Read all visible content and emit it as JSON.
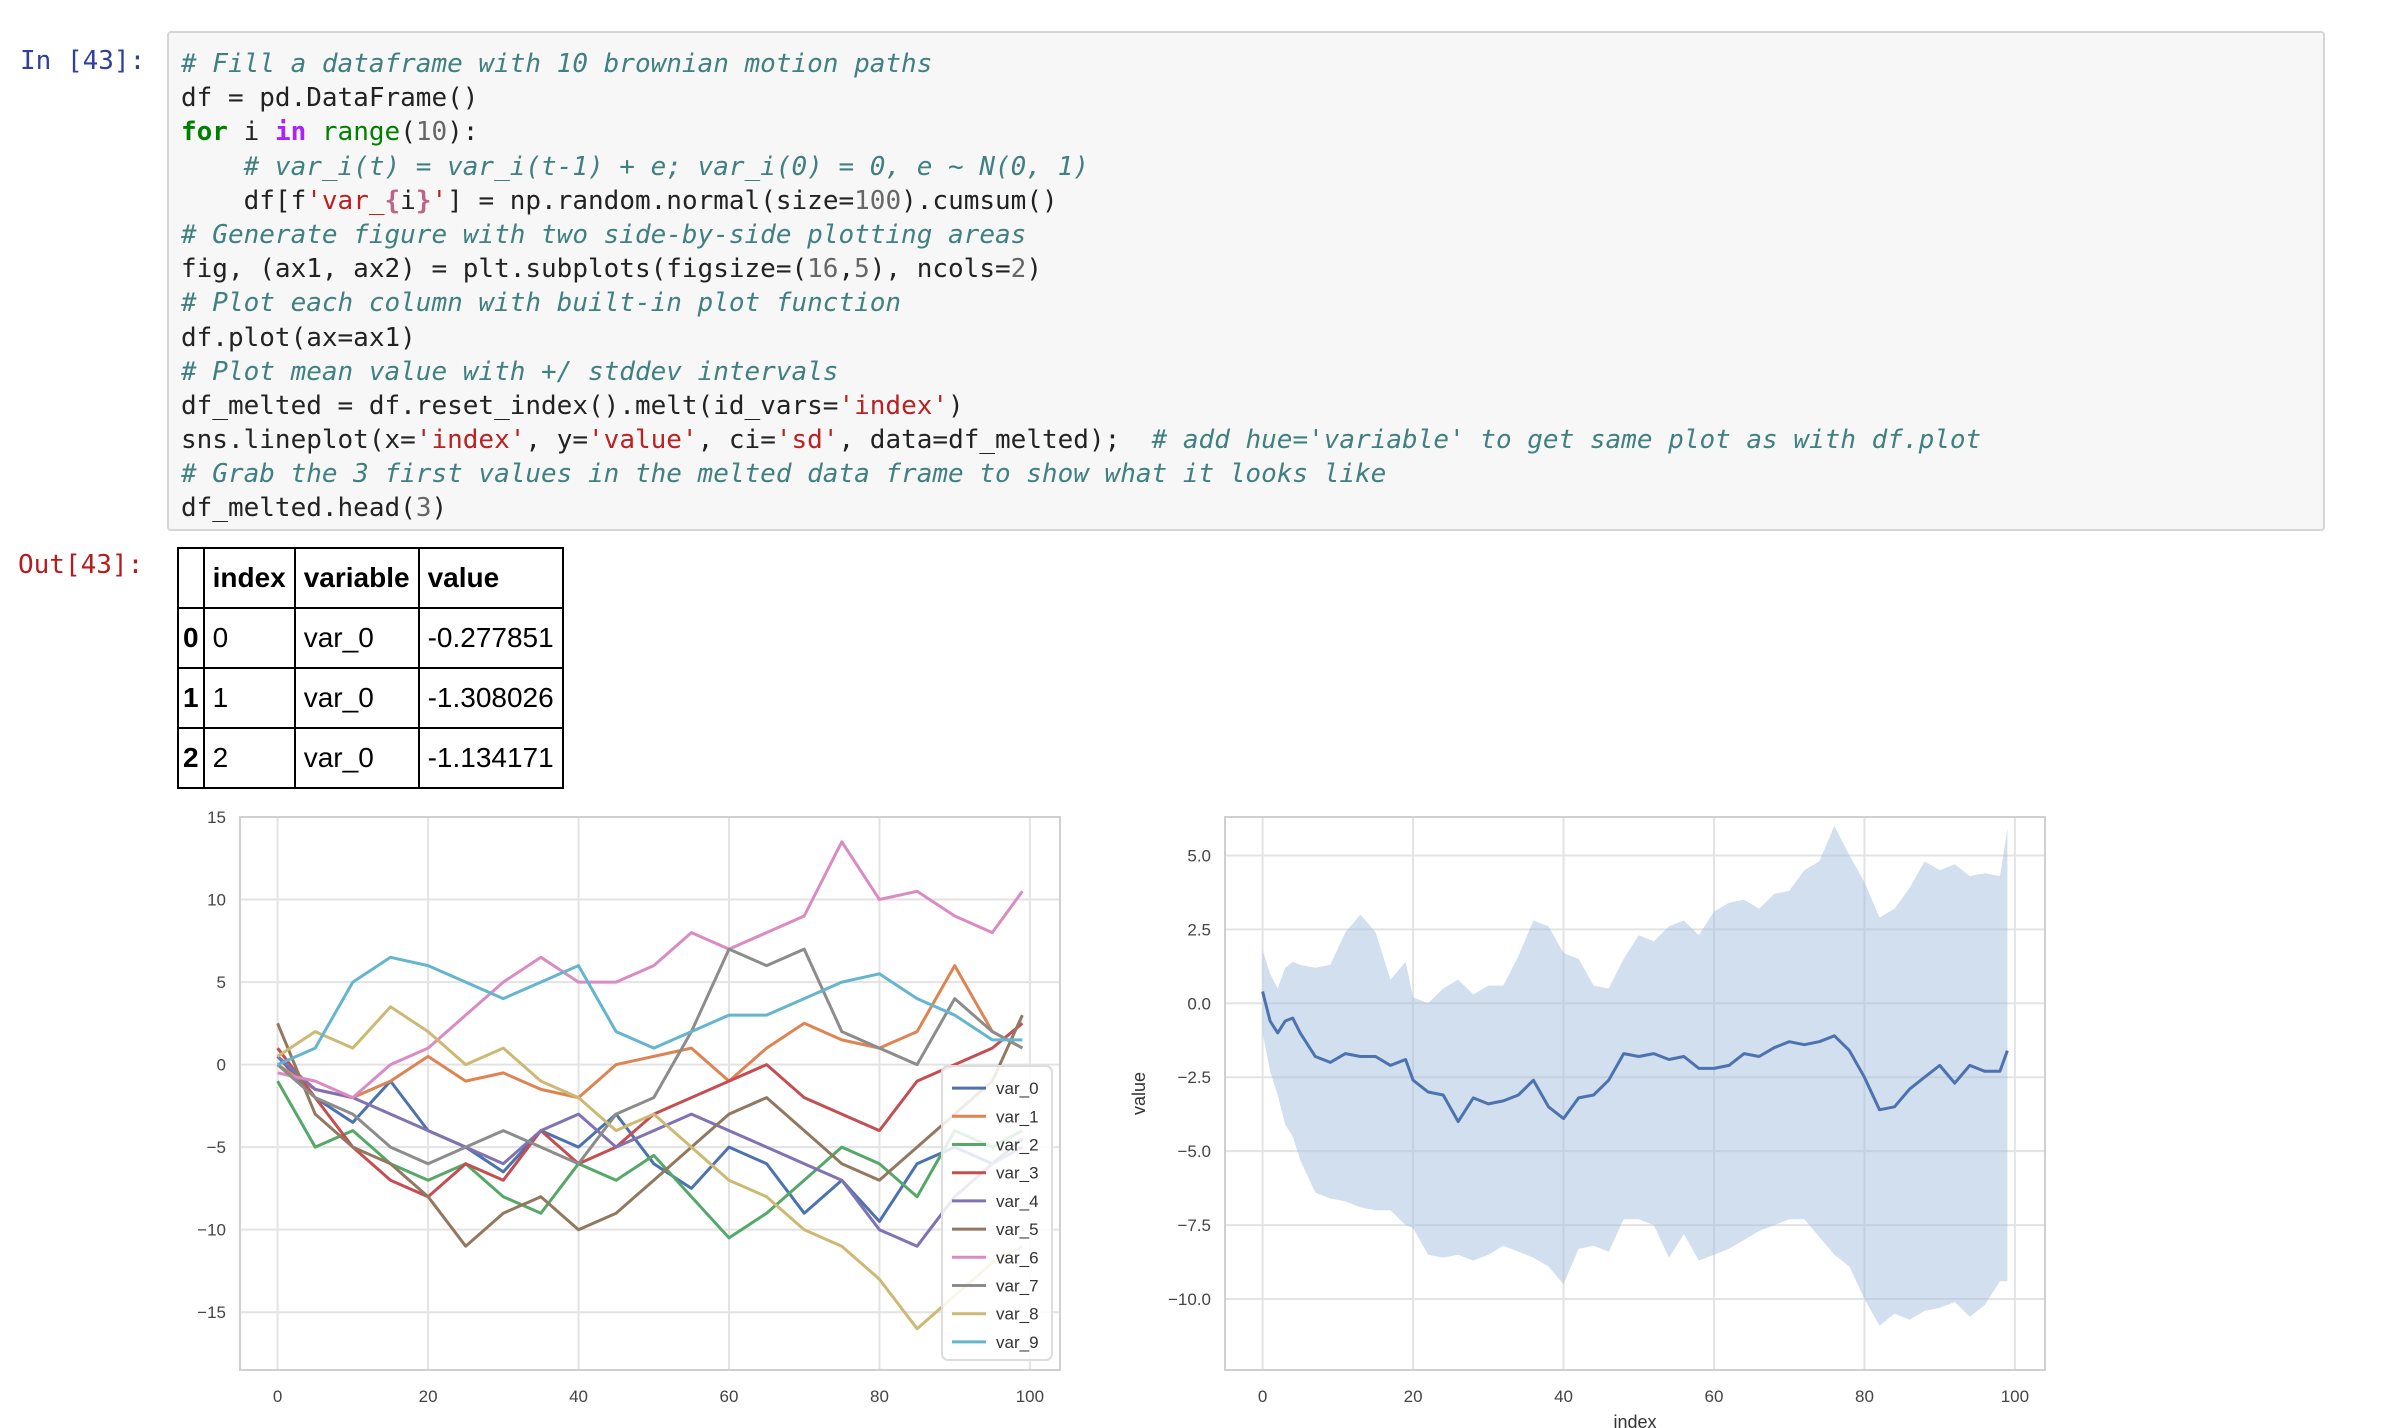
{
  "prompts": {
    "in": "In [43]:",
    "out": "Out[43]:"
  },
  "code": [
    [
      {
        "t": "c",
        "v": "# Fill a dataframe with 10 brownian motion paths"
      }
    ],
    [
      {
        "t": "",
        "v": "df = pd.DataFrame()"
      }
    ],
    [
      {
        "t": "k",
        "v": "for"
      },
      {
        "t": "",
        "v": " i "
      },
      {
        "t": "ow",
        "v": "in"
      },
      {
        "t": "",
        "v": " "
      },
      {
        "t": "nb",
        "v": "range"
      },
      {
        "t": "",
        "v": "("
      },
      {
        "t": "mi",
        "v": "10"
      },
      {
        "t": "",
        "v": "):"
      }
    ],
    [
      {
        "t": "",
        "v": "    "
      },
      {
        "t": "c",
        "v": "# var_i(t) = var_i(t-1) + e; var_i(0) = 0, e ~ N(0, 1)"
      }
    ],
    [
      {
        "t": "",
        "v": "    df[f"
      },
      {
        "t": "s",
        "v": "'var_"
      },
      {
        "t": "si",
        "v": "{"
      },
      {
        "t": "",
        "v": "i"
      },
      {
        "t": "si",
        "v": "}"
      },
      {
        "t": "s",
        "v": "'"
      },
      {
        "t": "",
        "v": "] = np.random.normal(size="
      },
      {
        "t": "mi",
        "v": "100"
      },
      {
        "t": "",
        "v": ").cumsum()"
      }
    ],
    [
      {
        "t": "c",
        "v": "# Generate figure with two side-by-side plotting areas"
      }
    ],
    [
      {
        "t": "",
        "v": "fig, (ax1, ax2) = plt.subplots(figsize=("
      },
      {
        "t": "mi",
        "v": "16"
      },
      {
        "t": "",
        "v": ","
      },
      {
        "t": "mi",
        "v": "5"
      },
      {
        "t": "",
        "v": "), ncols="
      },
      {
        "t": "mi",
        "v": "2"
      },
      {
        "t": "",
        "v": ")"
      }
    ],
    [
      {
        "t": "c",
        "v": "# Plot each column with built-in plot function"
      }
    ],
    [
      {
        "t": "",
        "v": "df.plot(ax=ax1)"
      }
    ],
    [
      {
        "t": "c",
        "v": "# Plot mean value with +/ stddev intervals"
      }
    ],
    [
      {
        "t": "",
        "v": "df_melted = df.reset_index().melt(id_vars="
      },
      {
        "t": "s",
        "v": "'index'"
      },
      {
        "t": "",
        "v": ")"
      }
    ],
    [
      {
        "t": "",
        "v": "sns.lineplot(x="
      },
      {
        "t": "s",
        "v": "'index'"
      },
      {
        "t": "",
        "v": ", y="
      },
      {
        "t": "s",
        "v": "'value'"
      },
      {
        "t": "",
        "v": ", ci="
      },
      {
        "t": "s",
        "v": "'sd'"
      },
      {
        "t": "",
        "v": ", data=df_melted);  "
      },
      {
        "t": "c",
        "v": "# add hue='variable' to get same plot as with df.plot"
      }
    ],
    [
      {
        "t": "c",
        "v": "# Grab the 3 first values in the melted data frame to show what it looks like"
      }
    ],
    [
      {
        "t": "",
        "v": "df_melted.head("
      },
      {
        "t": "mi",
        "v": "3"
      },
      {
        "t": "",
        "v": ")"
      }
    ]
  ],
  "output_table": {
    "columns": [
      "",
      "index",
      "variable",
      "value"
    ],
    "rows": [
      {
        "label": "0",
        "cells": [
          "0",
          "var_0",
          "-0.277851"
        ]
      },
      {
        "label": "1",
        "cells": [
          "1",
          "var_0",
          "-1.308026"
        ]
      },
      {
        "label": "2",
        "cells": [
          "2",
          "var_0",
          "-1.134171"
        ]
      }
    ]
  },
  "chart_data": [
    {
      "type": "line",
      "title": "",
      "xlabel": "",
      "ylabel": "",
      "xlim": [
        -5,
        104
      ],
      "ylim": [
        -18.5,
        15
      ],
      "x_ticks": [
        "0",
        "20",
        "40",
        "60",
        "80",
        "100"
      ],
      "y_ticks": [
        "15",
        "10",
        "5",
        "0",
        "−5",
        "−10",
        "−15"
      ],
      "grid": true,
      "legend_position": "bottom-right",
      "series": [
        {
          "name": "var_0",
          "color": "#4c72b0",
          "x": [
            0,
            5,
            10,
            15,
            20,
            25,
            30,
            35,
            40,
            45,
            50,
            55,
            60,
            65,
            70,
            75,
            80,
            85,
            90,
            95,
            99
          ],
          "values": [
            0.5,
            -2,
            -3.5,
            -1,
            -4,
            -5,
            -6.5,
            -4,
            -5,
            -3,
            -6,
            -7.5,
            -5,
            -6,
            -9,
            -7,
            -9.5,
            -6,
            -5,
            -6,
            -4.5
          ]
        },
        {
          "name": "var_1",
          "color": "#dd8452",
          "x": [
            0,
            5,
            10,
            15,
            20,
            25,
            30,
            35,
            40,
            45,
            50,
            55,
            60,
            65,
            70,
            75,
            80,
            85,
            90,
            95,
            99
          ],
          "values": [
            0,
            -1.5,
            -2,
            -1,
            0.5,
            -1,
            -0.5,
            -1.5,
            -2,
            0,
            0.5,
            1,
            -1,
            1,
            2.5,
            1.5,
            1,
            2,
            6,
            2,
            1
          ]
        },
        {
          "name": "var_2",
          "color": "#55a868",
          "x": [
            0,
            5,
            10,
            15,
            20,
            25,
            30,
            35,
            40,
            45,
            50,
            55,
            60,
            65,
            70,
            75,
            80,
            85,
            90,
            95,
            99
          ],
          "values": [
            -1,
            -5,
            -4,
            -6,
            -7,
            -6,
            -8,
            -9,
            -6,
            -7,
            -5.5,
            -8,
            -10.5,
            -9,
            -7,
            -5,
            -6,
            -8,
            -4,
            -5,
            -4
          ]
        },
        {
          "name": "var_3",
          "color": "#c44e52",
          "x": [
            0,
            5,
            10,
            15,
            20,
            25,
            30,
            35,
            40,
            45,
            50,
            55,
            60,
            65,
            70,
            75,
            80,
            85,
            90,
            95,
            99
          ],
          "values": [
            1,
            -2,
            -5,
            -7,
            -8,
            -6,
            -7,
            -4,
            -6,
            -5,
            -3,
            -2,
            -1,
            0,
            -2,
            -3,
            -4,
            -1,
            0,
            1,
            2.5
          ]
        },
        {
          "name": "var_4",
          "color": "#8172b2",
          "x": [
            0,
            5,
            10,
            15,
            20,
            25,
            30,
            35,
            40,
            45,
            50,
            55,
            60,
            65,
            70,
            75,
            80,
            85,
            90,
            95,
            99
          ],
          "values": [
            0.5,
            -1.5,
            -2,
            -3,
            -4,
            -5,
            -6,
            -4,
            -3,
            -5,
            -4,
            -3,
            -4,
            -5,
            -6,
            -7,
            -10,
            -11,
            -8,
            -6,
            -5
          ]
        },
        {
          "name": "var_5",
          "color": "#937860",
          "x": [
            0,
            5,
            10,
            15,
            20,
            25,
            30,
            35,
            40,
            45,
            50,
            55,
            60,
            65,
            70,
            75,
            80,
            85,
            90,
            95,
            99
          ],
          "values": [
            2.5,
            -3,
            -5,
            -6,
            -8,
            -11,
            -9,
            -8,
            -10,
            -9,
            -7,
            -5,
            -3,
            -2,
            -4,
            -6,
            -7,
            -5,
            -3,
            -1,
            3
          ]
        },
        {
          "name": "var_6",
          "color": "#da8bc3",
          "x": [
            0,
            5,
            10,
            15,
            20,
            25,
            30,
            35,
            40,
            45,
            50,
            55,
            60,
            65,
            70,
            75,
            80,
            85,
            90,
            95,
            99
          ],
          "values": [
            -0.5,
            -1,
            -2,
            0,
            1,
            3,
            5,
            6.5,
            5,
            5,
            6,
            8,
            7,
            8,
            9,
            13.5,
            10,
            10.5,
            9,
            8,
            10.5
          ]
        },
        {
          "name": "var_7",
          "color": "#8c8c8c",
          "x": [
            0,
            5,
            10,
            15,
            20,
            25,
            30,
            35,
            40,
            45,
            50,
            55,
            60,
            65,
            70,
            75,
            80,
            85,
            90,
            95,
            99
          ],
          "values": [
            0,
            -2,
            -3,
            -5,
            -6,
            -5,
            -4,
            -5,
            -6,
            -3,
            -2,
            2,
            7,
            6,
            7,
            2,
            1,
            0,
            4,
            2,
            1
          ]
        },
        {
          "name": "var_8",
          "color": "#ccb974",
          "x": [
            0,
            5,
            10,
            15,
            20,
            25,
            30,
            35,
            40,
            45,
            50,
            55,
            60,
            65,
            70,
            75,
            80,
            85,
            90,
            95,
            99
          ],
          "values": [
            0.5,
            2,
            1,
            3.5,
            2,
            0,
            1,
            -1,
            -2,
            -4,
            -3,
            -5,
            -7,
            -8,
            -10,
            -11,
            -13,
            -16,
            -14,
            -12,
            -11
          ]
        },
        {
          "name": "var_9",
          "color": "#64b5cd",
          "x": [
            0,
            5,
            10,
            15,
            20,
            25,
            30,
            35,
            40,
            45,
            50,
            55,
            60,
            65,
            70,
            75,
            80,
            85,
            90,
            95,
            99
          ],
          "values": [
            0,
            1,
            5,
            6.5,
            6,
            5,
            4,
            5,
            6,
            2,
            1,
            2,
            3,
            3,
            4,
            5,
            5.5,
            4,
            3,
            1.5,
            1.5
          ]
        }
      ]
    },
    {
      "type": "area",
      "title": "",
      "xlabel": "index",
      "ylabel": "value",
      "xlim": [
        -5,
        104
      ],
      "ylim": [
        -12.4,
        6.3
      ],
      "x_ticks": [
        "0",
        "20",
        "40",
        "60",
        "80",
        "100"
      ],
      "y_ticks": [
        "5.0",
        "2.5",
        "0.0",
        "−2.5",
        "−5.0",
        "−7.5",
        "−10.0"
      ],
      "grid": true,
      "series": [
        {
          "name": "",
          "color": "#4c72b0",
          "band_color": "#a5bfdd",
          "x": [
            0,
            1,
            2,
            3,
            4,
            5,
            7,
            9,
            11,
            13,
            15,
            17,
            19,
            20,
            22,
            24,
            26,
            28,
            30,
            32,
            34,
            36,
            38,
            40,
            42,
            44,
            46,
            48,
            50,
            52,
            54,
            56,
            58,
            60,
            62,
            64,
            66,
            68,
            70,
            72,
            74,
            76,
            78,
            80,
            82,
            84,
            86,
            88,
            90,
            92,
            94,
            96,
            98,
            99
          ],
          "values": [
            0.4,
            -0.6,
            -1,
            -0.6,
            -0.5,
            -1,
            -1.8,
            -2,
            -1.7,
            -1.8,
            -1.8,
            -2.1,
            -1.9,
            -2.6,
            -3,
            -3.1,
            -4,
            -3.2,
            -3.4,
            -3.3,
            -3.1,
            -2.6,
            -3.5,
            -3.9,
            -3.2,
            -3.1,
            -2.6,
            -1.7,
            -1.8,
            -1.7,
            -1.9,
            -1.8,
            -2.2,
            -2.2,
            -2.1,
            -1.7,
            -1.8,
            -1.5,
            -1.3,
            -1.4,
            -1.3,
            -1.1,
            -1.6,
            -2.5,
            -3.6,
            -3.5,
            -2.9,
            -2.5,
            -2.1,
            -2.7,
            -2.1,
            -2.3,
            -2.3,
            -1.6
          ],
          "upper": [
            1.8,
            1,
            0.5,
            1.2,
            1.4,
            1.3,
            1.2,
            1.3,
            2.4,
            3,
            2.4,
            0.8,
            1.4,
            0.2,
            0,
            0.5,
            0.8,
            0.3,
            0.6,
            0.6,
            1.6,
            2.8,
            2.6,
            1.7,
            1.5,
            0.6,
            0.5,
            1.5,
            2.3,
            2.1,
            2.6,
            2.8,
            2.3,
            3.1,
            3.4,
            3.5,
            3.2,
            3.7,
            3.8,
            4.5,
            4.8,
            6.0,
            5.0,
            4.1,
            2.9,
            3.2,
            3.9,
            4.8,
            4.5,
            4.7,
            4.3,
            4.4,
            4.3,
            5.9
          ],
          "lower": [
            -1,
            -2.3,
            -3.1,
            -4.1,
            -4.5,
            -5.3,
            -6.4,
            -6.6,
            -6.7,
            -6.9,
            -7,
            -7,
            -7.5,
            -7.6,
            -8.5,
            -8.6,
            -8.5,
            -8.7,
            -8.5,
            -8.2,
            -8.4,
            -8.6,
            -8.9,
            -9.5,
            -8.3,
            -8.2,
            -8.4,
            -7.3,
            -7.3,
            -7.5,
            -8.6,
            -7.8,
            -8.7,
            -8.5,
            -8.3,
            -8,
            -7.7,
            -7.5,
            -7.3,
            -7.3,
            -7.9,
            -8.5,
            -8.9,
            -10,
            -10.9,
            -10.5,
            -10.7,
            -10.4,
            -10.3,
            -10.1,
            -10.6,
            -10.2,
            -9.4,
            -9.4
          ]
        }
      ]
    }
  ]
}
